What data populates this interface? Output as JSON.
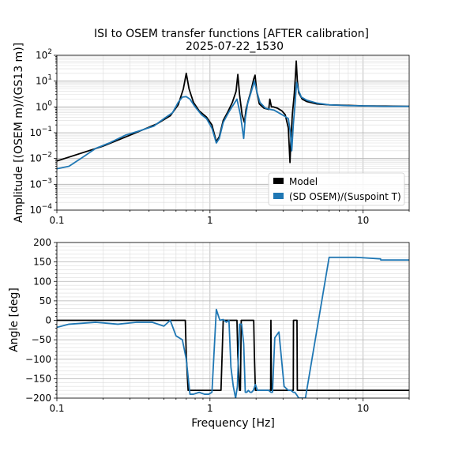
{
  "figure": {
    "title_line1": "ISI to OSEM transfer functions [AFTER calibration]",
    "title_line2": "2025-07-22_1530"
  },
  "chart_data": [
    {
      "type": "line",
      "xscale": "log",
      "yscale": "log",
      "xlim": [
        0.1,
        20
      ],
      "ylim": [
        0.0001,
        100
      ],
      "ylabel": "Amplitude [(OSEM m)/(GS13 m)]",
      "xlabel": "",
      "x_tick_labels": [
        {
          "value": 0.1,
          "label": "0.1"
        },
        {
          "value": 1,
          "label": "1"
        },
        {
          "value": 10,
          "label": "10"
        }
      ],
      "y_tick_labels": [
        {
          "value": 0.0001,
          "base": "10",
          "exp": "−4"
        },
        {
          "value": 0.001,
          "base": "10",
          "exp": "−3"
        },
        {
          "value": 0.01,
          "base": "10",
          "exp": "−2"
        },
        {
          "value": 0.1,
          "base": "10",
          "exp": "−1"
        },
        {
          "value": 1,
          "base": "10",
          "exp": "0"
        },
        {
          "value": 10,
          "base": "10",
          "exp": "1"
        },
        {
          "value": 100,
          "base": "10",
          "exp": "2"
        }
      ],
      "grid": "major and minor",
      "legend": {
        "position": "lower-right",
        "entries": [
          {
            "name": "Model",
            "color": "#000000"
          },
          {
            "name": "(SD OSEM)/(Suspoint T)",
            "color": "#1f77b4"
          }
        ]
      },
      "series": [
        {
          "name": "Model",
          "color": "#000000",
          "x": [
            0.1,
            0.2,
            0.3,
            0.45,
            0.55,
            0.62,
            0.67,
            0.7,
            0.73,
            0.78,
            0.85,
            0.95,
            1.03,
            1.1,
            1.15,
            1.22,
            1.3,
            1.4,
            1.48,
            1.52,
            1.56,
            1.62,
            1.68,
            1.72,
            1.78,
            1.85,
            1.93,
            1.97,
            2.02,
            2.1,
            2.25,
            2.42,
            2.46,
            2.52,
            2.6,
            2.75,
            2.95,
            3.1,
            3.25,
            3.33,
            3.38,
            3.45,
            3.55,
            3.62,
            3.66,
            3.72,
            3.8,
            4.0,
            4.3,
            5.0,
            6.0,
            8.0,
            10,
            14,
            20
          ],
          "y": [
            0.008,
            0.03,
            0.08,
            0.22,
            0.45,
            1.2,
            5,
            20,
            5,
            1.5,
            0.7,
            0.4,
            0.2,
            0.045,
            0.07,
            0.3,
            0.6,
            1.5,
            4,
            18,
            3,
            0.5,
            0.25,
            0.8,
            1.8,
            4,
            12,
            17,
            4,
            1.3,
            0.9,
            0.8,
            2,
            1.0,
            1.0,
            0.9,
            0.7,
            0.5,
            0.15,
            0.007,
            0.06,
            0.5,
            3,
            18,
            60,
            10,
            3.5,
            2.0,
            1.6,
            1.3,
            1.2,
            1.15,
            1.1,
            1.08,
            1.05
          ]
        },
        {
          "name": "(SD OSEM)/(Suspoint T)",
          "color": "#1f77b4",
          "x": [
            0.1,
            0.12,
            0.15,
            0.18,
            0.22,
            0.28,
            0.35,
            0.43,
            0.5,
            0.57,
            0.62,
            0.66,
            0.7,
            0.74,
            0.8,
            0.88,
            0.95,
            1.03,
            1.1,
            1.15,
            1.22,
            1.32,
            1.42,
            1.5,
            1.58,
            1.66,
            1.7,
            1.76,
            1.85,
            1.95,
            2.02,
            2.12,
            2.3,
            2.48,
            2.62,
            2.8,
            3.05,
            3.25,
            3.35,
            3.42,
            3.5,
            3.6,
            3.68,
            3.78,
            3.95,
            4.3,
            5.0,
            6.0,
            8.0,
            10,
            14,
            20
          ],
          "y": [
            0.004,
            0.005,
            0.012,
            0.025,
            0.04,
            0.08,
            0.12,
            0.18,
            0.35,
            0.6,
            1.5,
            2.4,
            2.5,
            2.0,
            1.0,
            0.5,
            0.35,
            0.15,
            0.04,
            0.06,
            0.25,
            0.6,
            1.2,
            2.0,
            0.5,
            0.06,
            0.35,
            1.3,
            3.5,
            10,
            4,
            1.5,
            0.9,
            0.8,
            0.75,
            0.6,
            0.45,
            0.35,
            0.1,
            0.02,
            0.2,
            1.5,
            9,
            4.5,
            2.4,
            1.8,
            1.4,
            1.2,
            1.12,
            1.1,
            1.05,
            1.05
          ]
        }
      ]
    },
    {
      "type": "line",
      "xscale": "log",
      "yscale": "linear",
      "xlim": [
        0.1,
        20
      ],
      "ylim": [
        -200,
        200
      ],
      "xlabel": "Frequency [Hz]",
      "ylabel": "Angle [deg]",
      "x_tick_labels": [
        {
          "value": 0.1,
          "label": "0.1"
        },
        {
          "value": 1,
          "label": "1"
        },
        {
          "value": 10,
          "label": "10"
        }
      ],
      "y_tick_labels": [
        {
          "value": 200,
          "label": "200"
        },
        {
          "value": 150,
          "label": "150"
        },
        {
          "value": 100,
          "label": "100"
        },
        {
          "value": 50,
          "label": "50"
        },
        {
          "value": 0,
          "label": "0"
        },
        {
          "value": -50,
          "label": "−50"
        },
        {
          "value": -100,
          "label": "−100"
        },
        {
          "value": -150,
          "label": "−150"
        },
        {
          "value": -200,
          "label": "−200"
        }
      ],
      "grid": "major and minor",
      "series": [
        {
          "name": "Model",
          "color": "#000000",
          "x": [
            0.1,
            0.69,
            0.7,
            0.72,
            1.18,
            1.22,
            1.24,
            1.5,
            1.52,
            1.56,
            1.58,
            1.6,
            1.76,
            1.77,
            1.93,
            1.95,
            1.98,
            2.49,
            2.5,
            2.51,
            2.52,
            3.5,
            3.51,
            3.7,
            3.72,
            20
          ],
          "y": [
            0,
            0,
            -90,
            -180,
            -180,
            0,
            0,
            0,
            -90,
            -180,
            -180,
            0,
            0,
            0,
            0,
            -90,
            -180,
            -180,
            0,
            -90,
            -180,
            -180,
            0,
            0,
            -180,
            -180
          ]
        },
        {
          "name": "(SD OSEM)/(Suspoint T)",
          "color": "#1f77b4",
          "x": [
            0.1,
            0.12,
            0.18,
            0.25,
            0.33,
            0.42,
            0.5,
            0.55,
            0.6,
            0.66,
            0.7,
            0.74,
            0.78,
            0.85,
            0.92,
            0.98,
            1.03,
            1.1,
            1.16,
            1.22,
            1.28,
            1.33,
            1.37,
            1.42,
            1.47,
            1.51,
            1.56,
            1.61,
            1.66,
            1.7,
            1.74,
            1.78,
            1.83,
            1.87,
            1.92,
            1.98,
            2.04,
            2.2,
            2.42,
            2.5,
            2.56,
            2.65,
            2.82,
            3.05,
            3.25,
            3.38,
            3.5,
            3.58,
            3.66,
            3.73,
            3.8,
            4.2,
            6.0,
            9.0,
            13.0,
            13.05,
            14.0,
            20
          ],
          "y": [
            -18,
            -10,
            -5,
            -10,
            -5,
            -5,
            -15,
            0,
            -40,
            -50,
            -100,
            -190,
            -190,
            -185,
            -190,
            -190,
            -185,
            28,
            0,
            2,
            -5,
            0,
            -120,
            -170,
            -200,
            -170,
            -10,
            -10,
            -60,
            -185,
            -185,
            -180,
            -185,
            -185,
            -180,
            -165,
            -180,
            -180,
            -180,
            -185,
            -185,
            -45,
            -30,
            -170,
            -180,
            -180,
            -185,
            -185,
            -190,
            -195,
            -200,
            -200,
            162,
            162,
            158,
            155,
            155,
            155
          ]
        }
      ]
    }
  ]
}
